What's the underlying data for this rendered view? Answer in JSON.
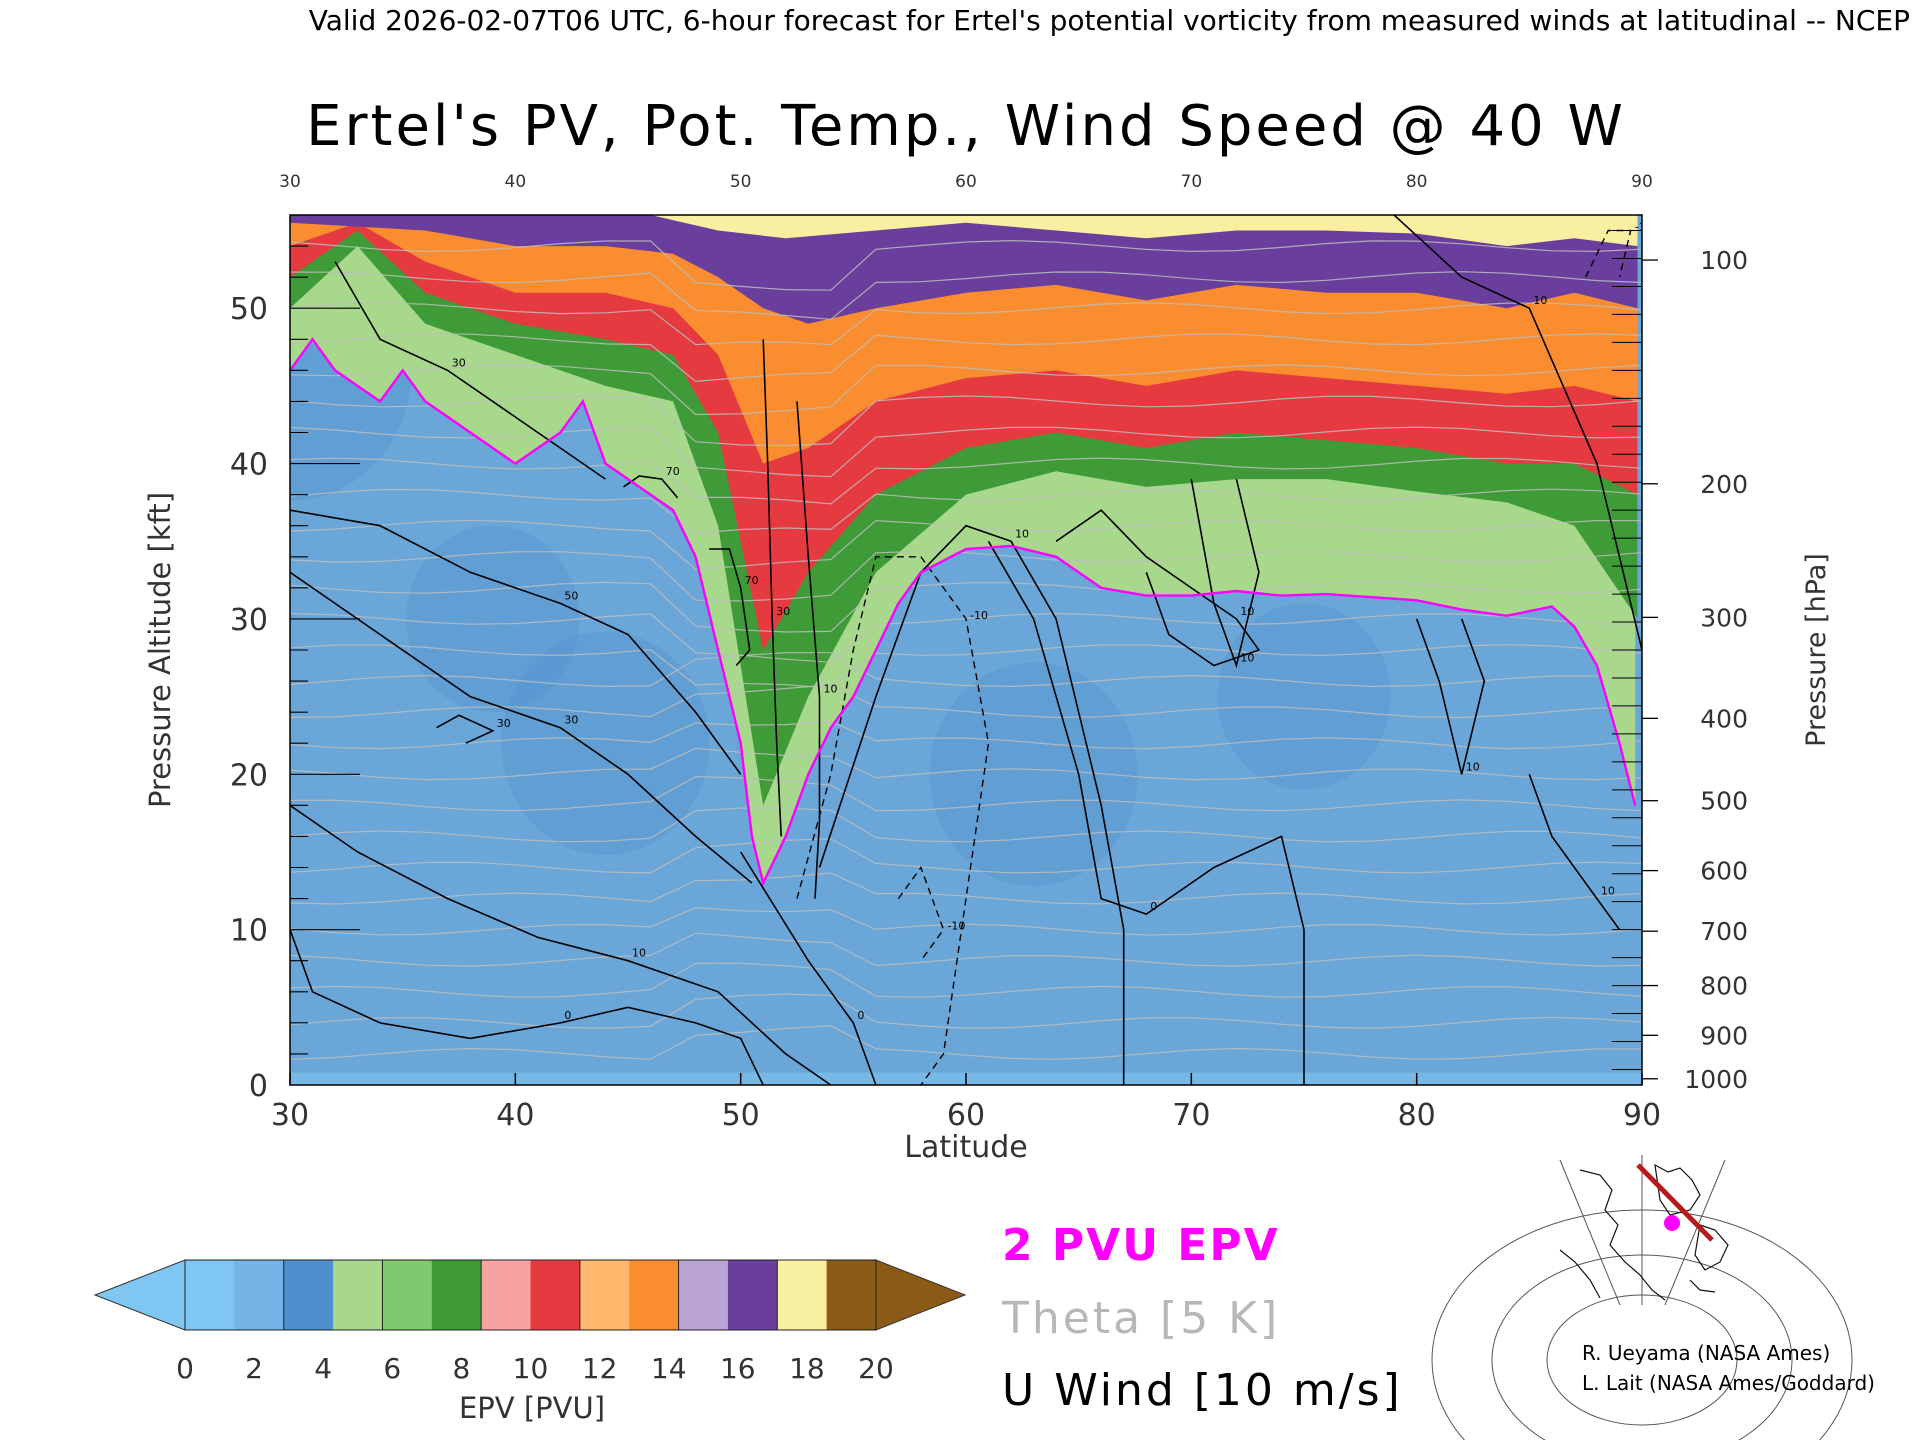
{
  "header": {
    "validity_line": "Valid 2026-02-07T06 UTC, 6-hour forecast for Ertel's potential vorticity from measured winds at latitudinal -- NCEP"
  },
  "chart_data": {
    "type": "heatmap",
    "title": "Ertel's PV, Pot. Temp., Wind Speed @ 40 W",
    "xlabel": "Latitude",
    "ylabel": "Pressure Altitude [kft]",
    "y2label": "Pressure [hPa]",
    "xlim": [
      30,
      90
    ],
    "ylim": [
      0,
      56
    ],
    "x_ticks": [
      30,
      40,
      50,
      60,
      70,
      80,
      90
    ],
    "top_x_ticks": [
      30,
      40,
      50,
      60,
      70,
      80,
      90
    ],
    "y_ticks": [
      0,
      10,
      20,
      30,
      40,
      50
    ],
    "pressure_ticks": [
      {
        "hpa": 100,
        "kft": 53.1
      },
      {
        "hpa": 200,
        "kft": 38.7
      },
      {
        "hpa": 300,
        "kft": 30.1
      },
      {
        "hpa": 400,
        "kft": 23.6
      },
      {
        "hpa": 500,
        "kft": 18.3
      },
      {
        "hpa": 600,
        "kft": 13.8
      },
      {
        "hpa": 700,
        "kft": 9.9
      },
      {
        "hpa": 800,
        "kft": 6.4
      },
      {
        "hpa": 900,
        "kft": 3.2
      },
      {
        "hpa": 1000,
        "kft": 0.4
      }
    ],
    "tropopause_2pvu_kft": [
      [
        30,
        46
      ],
      [
        31,
        48
      ],
      [
        32,
        46
      ],
      [
        34,
        44
      ],
      [
        35,
        46
      ],
      [
        36,
        44
      ],
      [
        38,
        42
      ],
      [
        40,
        40
      ],
      [
        42,
        42
      ],
      [
        43,
        44
      ],
      [
        44,
        40
      ],
      [
        45,
        39
      ],
      [
        46,
        38
      ],
      [
        47,
        37
      ],
      [
        48,
        34
      ],
      [
        49,
        28
      ],
      [
        50,
        22
      ],
      [
        50.5,
        16
      ],
      [
        51,
        13
      ],
      [
        52,
        16
      ],
      [
        53,
        20
      ],
      [
        54,
        23
      ],
      [
        55,
        25
      ],
      [
        56,
        28
      ],
      [
        57,
        31
      ],
      [
        58,
        33
      ],
      [
        60,
        34.5
      ],
      [
        62,
        34.7
      ],
      [
        64,
        34
      ],
      [
        66,
        32
      ],
      [
        68,
        31.5
      ],
      [
        70,
        31.5
      ],
      [
        72,
        31.8
      ],
      [
        74,
        31.5
      ],
      [
        76,
        31.6
      ],
      [
        78,
        31.4
      ],
      [
        80,
        31.2
      ],
      [
        82,
        30.6
      ],
      [
        84,
        30.2
      ],
      [
        86,
        30.8
      ],
      [
        87,
        29.5
      ],
      [
        88,
        27
      ],
      [
        89,
        22
      ],
      [
        89.7,
        18
      ]
    ],
    "upper_bands": [
      {
        "pvu": 4,
        "kft": [
          [
            30,
            50
          ],
          [
            33,
            54
          ],
          [
            36,
            49
          ],
          [
            40,
            47
          ],
          [
            44,
            45
          ],
          [
            47,
            44
          ],
          [
            49,
            36
          ],
          [
            51,
            18
          ],
          [
            53,
            25
          ],
          [
            56,
            33
          ],
          [
            60,
            38
          ],
          [
            64,
            39.5
          ],
          [
            68,
            38.5
          ],
          [
            72,
            39
          ],
          [
            76,
            39
          ],
          [
            80,
            38.2
          ],
          [
            84,
            37.5
          ],
          [
            87,
            36
          ],
          [
            89.8,
            30
          ]
        ]
      },
      {
        "pvu": 6,
        "kft": [
          [
            30,
            52
          ],
          [
            33,
            55
          ],
          [
            36,
            51
          ],
          [
            40,
            49
          ],
          [
            44,
            48
          ],
          [
            47,
            47
          ],
          [
            49,
            42
          ],
          [
            51,
            28
          ],
          [
            53,
            33
          ],
          [
            56,
            38
          ],
          [
            60,
            41
          ],
          [
            64,
            42
          ],
          [
            68,
            41
          ],
          [
            72,
            42
          ],
          [
            76,
            41.5
          ],
          [
            80,
            41
          ],
          [
            84,
            40
          ],
          [
            87,
            40
          ],
          [
            89.8,
            38
          ]
        ]
      },
      {
        "pvu": 8,
        "kft": [
          [
            30,
            54
          ],
          [
            33,
            55.5
          ],
          [
            36,
            53
          ],
          [
            40,
            51
          ],
          [
            44,
            51
          ],
          [
            47,
            50
          ],
          [
            49,
            47
          ],
          [
            51,
            40
          ],
          [
            53,
            41
          ],
          [
            56,
            44
          ],
          [
            60,
            45.5
          ],
          [
            64,
            46
          ],
          [
            68,
            45
          ],
          [
            72,
            46
          ],
          [
            76,
            45.5
          ],
          [
            80,
            45
          ],
          [
            84,
            44.5
          ],
          [
            87,
            45
          ],
          [
            89.8,
            44
          ]
        ]
      },
      {
        "pvu": 12,
        "kft": [
          [
            30,
            55.5
          ],
          [
            36,
            55
          ],
          [
            40,
            54
          ],
          [
            44,
            54
          ],
          [
            47,
            53.5
          ],
          [
            49,
            52
          ],
          [
            51,
            50
          ],
          [
            53,
            49
          ],
          [
            56,
            50
          ],
          [
            60,
            51
          ],
          [
            64,
            51.5
          ],
          [
            68,
            50.5
          ],
          [
            72,
            51.5
          ],
          [
            76,
            51
          ],
          [
            80,
            51
          ],
          [
            84,
            50
          ],
          [
            87,
            51
          ],
          [
            89.8,
            50
          ]
        ]
      },
      {
        "pvu": 14,
        "kft": [
          [
            30,
            56
          ],
          [
            40,
            56
          ],
          [
            46,
            56
          ],
          [
            49,
            55
          ],
          [
            52,
            54.5
          ],
          [
            56,
            55
          ],
          [
            60,
            55.5
          ],
          [
            64,
            55
          ],
          [
            68,
            54.5
          ],
          [
            72,
            55
          ],
          [
            76,
            55
          ],
          [
            80,
            54.8
          ],
          [
            84,
            54
          ],
          [
            87,
            54.5
          ],
          [
            89.8,
            54
          ]
        ]
      }
    ],
    "uwind_contours": [
      {
        "label": "70",
        "kft": [
          [
            44.8,
            38.5
          ],
          [
            45.5,
            39.2
          ],
          [
            46.5,
            39
          ],
          [
            47.2,
            37.8
          ]
        ]
      },
      {
        "label": "70",
        "kft": [
          [
            48.6,
            34.5
          ],
          [
            49.5,
            34.5
          ],
          [
            50,
            32
          ],
          [
            50.4,
            28
          ],
          [
            49.8,
            27
          ]
        ]
      },
      {
        "label": "50",
        "kft": [
          [
            30,
            37
          ],
          [
            34,
            36
          ],
          [
            38,
            33
          ],
          [
            42,
            31
          ],
          [
            45,
            29
          ],
          [
            48,
            24
          ],
          [
            50,
            20
          ]
        ]
      },
      {
        "label": "30",
        "kft": [
          [
            30,
            33
          ],
          [
            34,
            29
          ],
          [
            38,
            25
          ],
          [
            42,
            23
          ],
          [
            45,
            20
          ],
          [
            48,
            16
          ],
          [
            50.5,
            13
          ]
        ]
      },
      {
        "label": "30",
        "kft": [
          [
            36.5,
            23
          ],
          [
            37.5,
            23.8
          ],
          [
            39,
            22.8
          ],
          [
            37.8,
            22
          ]
        ]
      },
      {
        "label": "30",
        "kft": [
          [
            32,
            53
          ],
          [
            34,
            48
          ],
          [
            37,
            46
          ],
          [
            40,
            43
          ],
          [
            44,
            39
          ]
        ]
      },
      {
        "label": "30",
        "kft": [
          [
            51,
            48
          ],
          [
            51.2,
            40
          ],
          [
            51.4,
            30
          ],
          [
            51.6,
            22
          ],
          [
            51.8,
            16
          ]
        ]
      },
      {
        "label": "10",
        "kft": [
          [
            30,
            18
          ],
          [
            33,
            15
          ],
          [
            37,
            12
          ],
          [
            41,
            9.5
          ],
          [
            45,
            8
          ],
          [
            49,
            6
          ],
          [
            52,
            2
          ],
          [
            54,
            0
          ]
        ]
      },
      {
        "label": "10",
        "kft": [
          [
            52.5,
            44
          ],
          [
            53,
            34
          ],
          [
            53.5,
            25
          ],
          [
            53.5,
            17
          ],
          [
            53.3,
            12
          ]
        ]
      },
      {
        "label": "10",
        "kft": [
          [
            53.5,
            14
          ],
          [
            56,
            25
          ],
          [
            58,
            33
          ],
          [
            60,
            36
          ],
          [
            62,
            35
          ],
          [
            64,
            30
          ],
          [
            66,
            18
          ],
          [
            67,
            10
          ],
          [
            67,
            0
          ]
        ]
      },
      {
        "label": "10",
        "kft": [
          [
            64,
            35
          ],
          [
            66,
            37
          ],
          [
            68,
            34
          ],
          [
            70,
            32
          ],
          [
            72,
            30
          ],
          [
            73,
            28
          ],
          [
            71,
            27
          ],
          [
            69,
            29
          ],
          [
            68,
            33
          ]
        ]
      },
      {
        "label": "10",
        "kft": [
          [
            70,
            39
          ],
          [
            71,
            31
          ],
          [
            72,
            27
          ],
          [
            73,
            33
          ],
          [
            72,
            39
          ]
        ]
      },
      {
        "label": "0",
        "kft": [
          [
            30,
            10
          ],
          [
            31,
            6
          ],
          [
            34,
            4
          ],
          [
            38,
            3
          ],
          [
            42,
            4
          ],
          [
            45,
            5
          ],
          [
            48,
            4
          ],
          [
            50,
            3
          ],
          [
            51,
            0
          ]
        ]
      },
      {
        "label": "0",
        "kft": [
          [
            50,
            15
          ],
          [
            53,
            8
          ],
          [
            55,
            4
          ],
          [
            56,
            0
          ]
        ]
      },
      {
        "label": "0",
        "kft": [
          [
            61,
            35
          ],
          [
            63,
            30
          ],
          [
            65,
            20
          ],
          [
            66,
            12
          ],
          [
            68,
            11
          ],
          [
            71,
            14
          ],
          [
            74,
            16
          ],
          [
            75,
            10
          ],
          [
            75,
            0
          ]
        ]
      },
      {
        "label": "10",
        "kft": [
          [
            80,
            30
          ],
          [
            81,
            26
          ],
          [
            82,
            20
          ],
          [
            83,
            26
          ],
          [
            82,
            30
          ]
        ]
      },
      {
        "label": "10",
        "kft": [
          [
            85,
            20
          ],
          [
            86,
            16
          ],
          [
            88,
            12
          ],
          [
            89,
            10
          ]
        ]
      },
      {
        "label": "10",
        "kft": [
          [
            79,
            56
          ],
          [
            82,
            52
          ],
          [
            85,
            50
          ],
          [
            88,
            40
          ],
          [
            90,
            28
          ]
        ]
      }
    ],
    "uwind_dashed": [
      {
        "label": "-10",
        "kft": [
          [
            52.5,
            12
          ],
          [
            54,
            20
          ],
          [
            55,
            28
          ],
          [
            56,
            34
          ],
          [
            58,
            34
          ],
          [
            60,
            30
          ],
          [
            61,
            22
          ],
          [
            60,
            12
          ],
          [
            59,
            2
          ],
          [
            58,
            0
          ]
        ]
      },
      {
        "label": "-10",
        "kft": [
          [
            57,
            12
          ],
          [
            58,
            14
          ],
          [
            59,
            10
          ],
          [
            58,
            8
          ]
        ]
      },
      {
        "label": "-10",
        "kft": [
          [
            87.5,
            52
          ],
          [
            88.5,
            55
          ],
          [
            89.5,
            55
          ],
          [
            89,
            52
          ]
        ]
      }
    ],
    "theta_levels_kft": [
      2,
      4,
      6,
      8,
      10,
      12,
      14,
      16,
      18,
      20,
      22,
      24,
      26,
      28,
      30,
      32,
      34,
      36,
      38,
      40,
      42,
      44,
      46,
      48,
      50,
      52,
      54
    ],
    "colorbar": {
      "label": "EPV [PVU]",
      "ticks": [
        0,
        2,
        4,
        6,
        8,
        10,
        12,
        14,
        16,
        18,
        20
      ],
      "colors": [
        "#7fc6f2",
        "#74b4e6",
        "#4f8fcd",
        "#a8d88c",
        "#7fc96e",
        "#3e9b37",
        "#f7a3a3",
        "#e53a3f",
        "#ffb86d",
        "#f98d2f",
        "#b9a3d3",
        "#6a3e9d",
        "#f8f0a0",
        "#8b5a16"
      ],
      "under_color": "#7fc6f2",
      "over_color": "#8b5a16"
    },
    "legend_entries": [
      {
        "label": "2 PVU EPV",
        "color": "#ff00ff"
      },
      {
        "label": "Theta [5 K]",
        "color": "#b7b7b7"
      },
      {
        "label": "U Wind [10 m/s]",
        "color": "#000000"
      }
    ]
  },
  "credits": {
    "line1": "R. Ueyama (NASA Ames)",
    "line2": "L. Lait (NASA Ames/Goddard)"
  },
  "inset_map": {
    "section_color": "#b51d1d",
    "marker_color": "#ff00ff"
  }
}
